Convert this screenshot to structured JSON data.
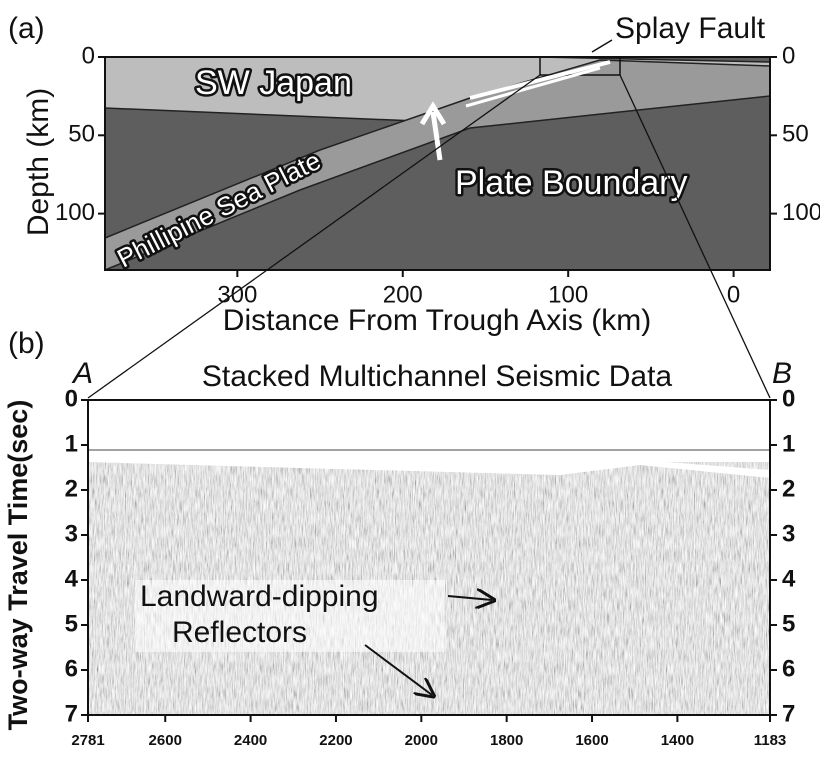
{
  "panel_a": {
    "label": "(a)",
    "y_label": "Depth (km)",
    "x_label": "Distance From Trough Axis (km)",
    "annotations": {
      "splay_fault": "Splay Fault",
      "sw_japan": "SW Japan",
      "philippine_sea_plate": "Phillipine Sea Plate",
      "plate_boundary": "Plate Boundary"
    },
    "xlim": [
      380,
      -22
    ],
    "xticks": [
      300,
      200,
      100,
      0
    ],
    "ylim": [
      0,
      136
    ],
    "yticks": [
      0,
      50,
      100
    ]
  },
  "panel_b": {
    "label": "(b)",
    "end_left": "A",
    "end_right": "B",
    "title": "Stacked Multichannel Seismic Data",
    "y_label": "Two-way Travel Time(sec)",
    "annotations": {
      "line1": "Landward-dipping",
      "line2": "Reflectors"
    },
    "xlim": [
      2781,
      1183
    ],
    "xticks": [
      2781,
      2600,
      2400,
      2200,
      2000,
      1800,
      1600,
      1400,
      1183
    ],
    "ylim": [
      0,
      7
    ],
    "yticks": [
      0,
      1,
      2,
      3,
      4,
      5,
      6,
      7
    ]
  }
}
